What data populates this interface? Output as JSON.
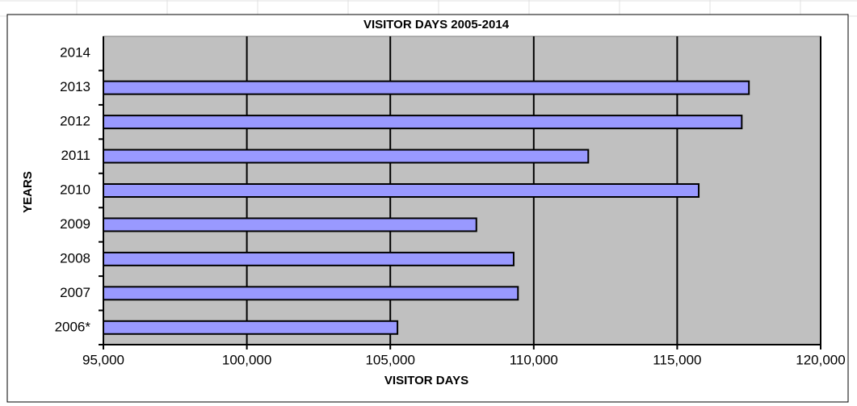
{
  "chart_data": {
    "type": "bar",
    "orientation": "horizontal",
    "title": "VISITOR DAYS 2005-2014",
    "x_label": "VISITOR DAYS",
    "y_label": "YEARS",
    "categories": [
      "2006*",
      "2007",
      "2008",
      "2009",
      "2010",
      "2011",
      "2012",
      "2013",
      "2014"
    ],
    "values": [
      105250,
      109450,
      109300,
      108000,
      115750,
      111900,
      117250,
      117500,
      null
    ],
    "color": "#9999ff",
    "plot_background": "#c0c0c0",
    "xlim": [
      95000,
      120000
    ],
    "xticks": [
      {
        "value": 95000,
        "label": "95,000"
      },
      {
        "value": 100000,
        "label": "100,000"
      },
      {
        "value": 105000,
        "label": "105,000"
      },
      {
        "value": 110000,
        "label": "110,000"
      },
      {
        "value": 115000,
        "label": "115,000"
      },
      {
        "value": 120000,
        "label": "120,000"
      }
    ],
    "grid": true
  }
}
